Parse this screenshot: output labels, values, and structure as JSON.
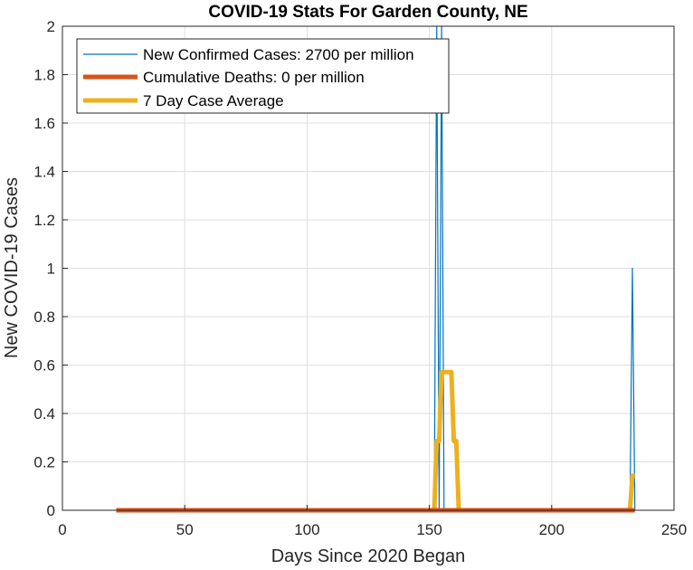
{
  "chart_data": {
    "type": "line",
    "title": "COVID-19 Stats For Garden County, NE",
    "xlabel": "Days Since 2020 Began",
    "ylabel": "New COVID-19 Cases",
    "xlim": [
      0,
      250
    ],
    "ylim": [
      0,
      2
    ],
    "xticks": [
      0,
      50,
      100,
      150,
      200,
      250
    ],
    "yticks": [
      0,
      0.2,
      0.4,
      0.6,
      0.8,
      1,
      1.2,
      1.4,
      1.6,
      1.8,
      2
    ],
    "grid": true,
    "legend_position": "top-left",
    "series": [
      {
        "name": "New Confirmed Cases: 2700 per million",
        "color": "#0072BD",
        "points": [
          [
            22,
            0
          ],
          [
            152,
            0
          ],
          [
            153,
            2
          ],
          [
            154,
            0
          ],
          [
            155,
            2
          ],
          [
            156,
            0
          ],
          [
            232,
            0
          ],
          [
            233,
            1
          ],
          [
            234,
            0
          ]
        ]
      },
      {
        "name": "Cumulative Deaths: 0 per million",
        "color": "#D95319",
        "points": [
          [
            22,
            0
          ],
          [
            234,
            0
          ]
        ]
      },
      {
        "name": "7 Day Case Average",
        "color": "#EDB120",
        "points": [
          [
            22,
            0
          ],
          [
            152,
            0
          ],
          [
            153,
            0.286
          ],
          [
            154,
            0.286
          ],
          [
            155,
            0.571
          ],
          [
            159,
            0.571
          ],
          [
            160,
            0.286
          ],
          [
            161,
            0.286
          ],
          [
            162,
            0
          ],
          [
            232,
            0
          ],
          [
            233,
            0.143
          ],
          [
            234,
            0.143
          ]
        ]
      }
    ]
  }
}
